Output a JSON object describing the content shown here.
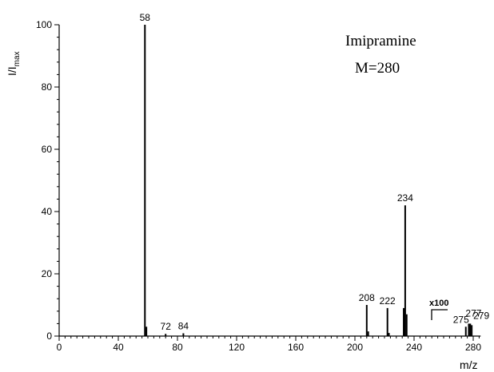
{
  "chart_data": {
    "type": "bar",
    "title": "Imipramine",
    "subtitle": "M=280",
    "xlabel": "m/z",
    "ylabel": "I/I",
    "ylabel_sub": "max",
    "xlim": [
      0,
      285
    ],
    "ylim": [
      0,
      100
    ],
    "xticks": [
      0,
      40,
      80,
      120,
      160,
      200,
      240,
      280
    ],
    "yticks": [
      0,
      20,
      40,
      60,
      80,
      100
    ],
    "grid": false,
    "peaks": [
      {
        "mz": 58,
        "intensity": 100,
        "label": "58"
      },
      {
        "mz": 59,
        "intensity": 3,
        "label": ""
      },
      {
        "mz": 72,
        "intensity": 0.7,
        "label": "72"
      },
      {
        "mz": 84,
        "intensity": 0.9,
        "label": "84"
      },
      {
        "mz": 208,
        "intensity": 10,
        "label": "208"
      },
      {
        "mz": 209,
        "intensity": 1.5,
        "label": ""
      },
      {
        "mz": 222,
        "intensity": 9,
        "label": "222"
      },
      {
        "mz": 223,
        "intensity": 1,
        "label": ""
      },
      {
        "mz": 233,
        "intensity": 9,
        "label": ""
      },
      {
        "mz": 234,
        "intensity": 42,
        "label": "234"
      },
      {
        "mz": 235,
        "intensity": 7,
        "label": ""
      },
      {
        "mz": 275,
        "intensity": 3,
        "label": "275"
      },
      {
        "mz": 277,
        "intensity": 4,
        "label": "277"
      },
      {
        "mz": 278,
        "intensity": 4,
        "label": ""
      },
      {
        "mz": 279,
        "intensity": 3.5,
        "label": "279"
      }
    ],
    "scale_annotation": "x100"
  }
}
